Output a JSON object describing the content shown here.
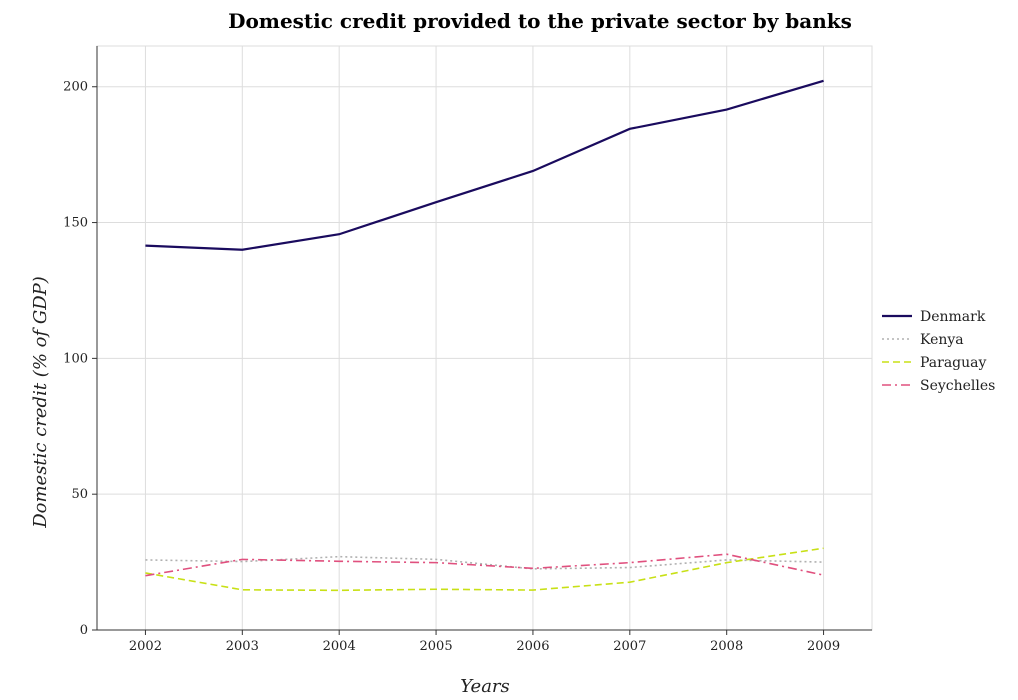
{
  "chart_data": {
    "type": "line",
    "title": "Domestic credit provided to the private sector by banks",
    "xlabel": "Years",
    "ylabel": "Domestic credit (% of GDP)",
    "categories": [
      "2002",
      "2003",
      "2004",
      "2005",
      "2006",
      "2007",
      "2008",
      "2009"
    ],
    "ylim": [
      0,
      215
    ],
    "yticks": [
      0,
      50,
      100,
      150,
      200
    ],
    "grid": true,
    "legend_position": "right",
    "series": [
      {
        "name": "Denmark",
        "color": "#1a0b5e",
        "dash": "solid",
        "values": [
          141.5,
          140.0,
          145.7,
          157.5,
          169.0,
          184.5,
          191.6,
          202.2
        ]
      },
      {
        "name": "Kenya",
        "color": "#b0b0b0",
        "dash": "dotted",
        "values": [
          25.8,
          25.2,
          27.0,
          26.0,
          22.5,
          23.0,
          25.8,
          25.0
        ]
      },
      {
        "name": "Paraguay",
        "color": "#c8e016",
        "dash": "dashed",
        "values": [
          21.0,
          14.8,
          14.6,
          15.0,
          14.7,
          17.6,
          24.8,
          30.1
        ]
      },
      {
        "name": "Seychelles",
        "color": "#e0507e",
        "dash": "dashdot",
        "values": [
          20.0,
          26.0,
          25.3,
          24.8,
          22.7,
          24.8,
          27.9,
          20.2
        ]
      }
    ]
  }
}
